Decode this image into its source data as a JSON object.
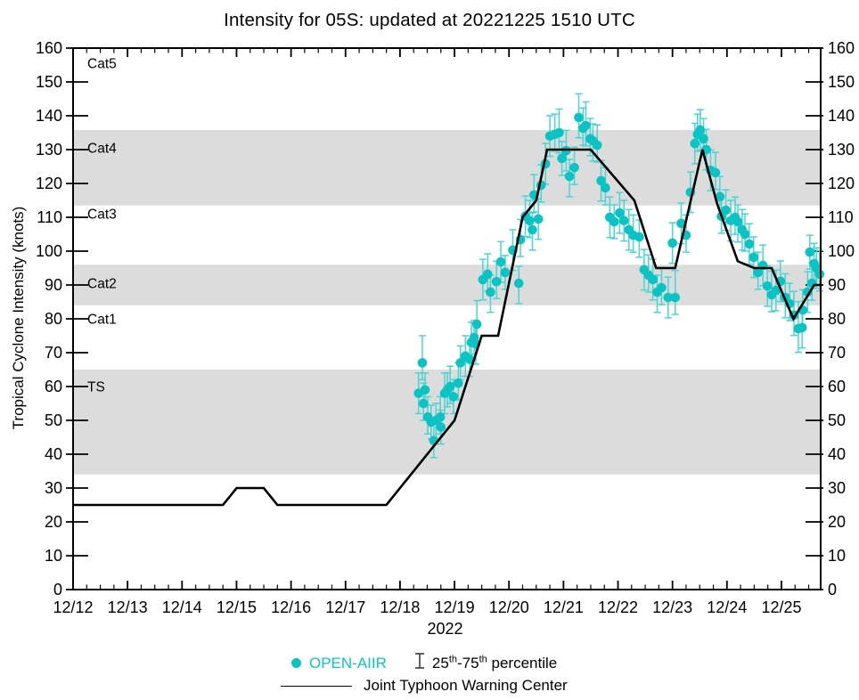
{
  "chart_data": {
    "type": "scatter",
    "title": "Intensity for 05S: updated at 20221225 1510 UTC",
    "ylabel": "Tropical Cyclone Intensity (knots)",
    "x_axis": {
      "year_label": "2022",
      "tick_labels": [
        "12/12",
        "12/13",
        "12/14",
        "12/15",
        "12/16",
        "12/17",
        "12/18",
        "12/19",
        "12/20",
        "12/21",
        "12/22",
        "12/23",
        "12/24",
        "12/25"
      ],
      "day_span": 13.72,
      "minor_step_days": 0.25
    },
    "y_axis": {
      "min": 0,
      "max": 160,
      "major_step": 10,
      "tick_labels": [
        "0",
        "10",
        "20",
        "30",
        "40",
        "50",
        "60",
        "70",
        "80",
        "90",
        "100",
        "110",
        "120",
        "130",
        "140",
        "150",
        "160"
      ]
    },
    "bands": [
      {
        "name": "TS",
        "from": 34,
        "to": 65
      },
      {
        "name": "Cat2",
        "from": 84,
        "to": 96
      },
      {
        "name": "Cat4",
        "from": 113.5,
        "to": 135.8
      }
    ],
    "category_labels": [
      {
        "label": "Cat5",
        "knots": 155.5
      },
      {
        "label": "Cat4",
        "knots": 130.5
      },
      {
        "label": "Cat3",
        "knots": 111
      },
      {
        "label": "Cat2",
        "knots": 90.5
      },
      {
        "label": "Cat1",
        "knots": 80
      },
      {
        "label": "TS",
        "knots": 60
      }
    ],
    "colors": {
      "band": "#dcdcdc",
      "open_aiir": "#0cc3c3",
      "error_bar": "#4ad4d4",
      "jtwc_line": "#000000"
    },
    "series": {
      "jtwc": {
        "name": "Joint Typhoon Warning Center",
        "points_day_knots": [
          [
            0,
            25
          ],
          [
            2.75,
            25
          ],
          [
            3.0,
            30
          ],
          [
            3.5,
            30
          ],
          [
            3.75,
            25
          ],
          [
            5.75,
            25
          ],
          [
            7.0,
            50
          ],
          [
            7.5,
            75
          ],
          [
            7.8,
            75
          ],
          [
            8.25,
            110
          ],
          [
            8.5,
            115
          ],
          [
            8.7,
            130
          ],
          [
            9.5,
            130
          ],
          [
            10.3,
            115
          ],
          [
            10.7,
            95
          ],
          [
            11.05,
            95
          ],
          [
            11.55,
            130
          ],
          [
            11.82,
            114
          ],
          [
            12.2,
            97
          ],
          [
            12.5,
            95
          ],
          [
            12.82,
            95
          ],
          [
            13.22,
            80
          ],
          [
            13.6,
            90
          ],
          [
            13.72,
            90
          ]
        ]
      },
      "open_aiir": {
        "name": "OPEN-AIIR",
        "points_day_knots_errlo_errhi": [
          [
            6.34,
            58,
            6,
            6
          ],
          [
            6.41,
            67,
            5,
            8
          ],
          [
            6.43,
            55,
            5,
            6
          ],
          [
            6.46,
            59,
            5,
            5
          ],
          [
            6.51,
            51,
            5,
            6
          ],
          [
            6.57,
            49.5,
            5,
            5
          ],
          [
            6.62,
            44,
            5,
            6
          ],
          [
            6.66,
            50,
            6,
            5
          ],
          [
            6.74,
            51,
            5,
            6
          ],
          [
            6.75,
            48,
            5,
            5
          ],
          [
            6.82,
            58,
            6,
            6
          ],
          [
            6.87,
            59,
            5,
            5
          ],
          [
            6.92,
            60,
            5,
            6
          ],
          [
            6.98,
            57,
            5,
            5
          ],
          [
            7.07,
            61,
            5,
            6
          ],
          [
            7.11,
            67,
            5,
            5
          ],
          [
            7.2,
            69,
            6,
            6
          ],
          [
            7.28,
            68,
            5,
            5
          ],
          [
            7.31,
            73,
            5,
            6
          ],
          [
            7.36,
            74.5,
            5,
            5
          ],
          [
            7.39,
            72.6,
            6,
            6
          ],
          [
            7.41,
            78.4,
            5,
            7
          ],
          [
            7.52,
            91.6,
            6,
            6
          ],
          [
            7.61,
            93.2,
            5,
            6
          ],
          [
            7.66,
            87.9,
            6,
            5
          ],
          [
            7.77,
            91,
            5,
            6
          ],
          [
            7.85,
            96.8,
            6,
            6
          ],
          [
            7.93,
            93.7,
            5,
            5
          ],
          [
            8.07,
            100.3,
            6,
            6
          ],
          [
            8.18,
            90.5,
            6,
            5
          ],
          [
            8.21,
            103.4,
            5,
            6
          ],
          [
            8.3,
            110.3,
            6,
            6
          ],
          [
            8.38,
            109,
            5,
            6
          ],
          [
            8.43,
            106.3,
            6,
            5
          ],
          [
            8.46,
            116.6,
            5,
            6
          ],
          [
            8.54,
            109.5,
            6,
            6
          ],
          [
            8.59,
            119.5,
            5,
            6
          ],
          [
            8.67,
            125.8,
            6,
            6
          ],
          [
            8.75,
            134,
            6,
            6
          ],
          [
            8.84,
            134.5,
            5,
            6
          ],
          [
            8.92,
            135,
            6,
            7
          ],
          [
            8.97,
            127.4,
            5,
            5
          ],
          [
            9.05,
            129.7,
            6,
            6
          ],
          [
            9.11,
            122.1,
            6,
            5
          ],
          [
            9.2,
            124.7,
            5,
            6
          ],
          [
            9.28,
            139.5,
            6,
            7
          ],
          [
            9.36,
            136.3,
            5,
            6
          ],
          [
            9.41,
            137.1,
            6,
            7
          ],
          [
            9.49,
            133.2,
            5,
            6
          ],
          [
            9.54,
            132.6,
            6,
            5
          ],
          [
            9.62,
            131.3,
            5,
            6
          ],
          [
            9.69,
            120.8,
            6,
            6
          ],
          [
            9.77,
            118.7,
            5,
            6
          ],
          [
            9.85,
            110,
            6,
            6
          ],
          [
            9.93,
            108.7,
            5,
            5
          ],
          [
            10.03,
            111.3,
            6,
            6
          ],
          [
            10.11,
            109,
            6,
            6
          ],
          [
            10.2,
            106.3,
            6,
            6
          ],
          [
            10.28,
            104.7,
            5,
            6
          ],
          [
            10.39,
            104.2,
            6,
            5
          ],
          [
            10.48,
            94.5,
            6,
            6
          ],
          [
            10.56,
            92.9,
            5,
            6
          ],
          [
            10.64,
            91.6,
            6,
            6
          ],
          [
            10.72,
            87.9,
            6,
            5
          ],
          [
            10.8,
            89.2,
            5,
            6
          ],
          [
            10.92,
            86.3,
            6,
            6
          ],
          [
            11.0,
            102.4,
            6,
            6
          ],
          [
            11.05,
            86.3,
            5,
            8
          ],
          [
            11.16,
            108.2,
            6,
            6
          ],
          [
            11.25,
            104.7,
            5,
            6
          ],
          [
            11.33,
            117.4,
            6,
            6
          ],
          [
            11.41,
            131.8,
            6,
            6
          ],
          [
            11.46,
            134.5,
            5,
            6
          ],
          [
            11.51,
            135.8,
            6,
            6
          ],
          [
            11.57,
            133.2,
            5,
            6
          ],
          [
            11.62,
            130,
            6,
            6
          ],
          [
            11.7,
            123.9,
            6,
            6
          ],
          [
            11.79,
            123.2,
            5,
            6
          ],
          [
            11.87,
            116.1,
            6,
            6
          ],
          [
            11.9,
            110.3,
            5,
            6
          ],
          [
            11.98,
            112.1,
            6,
            6
          ],
          [
            12.07,
            109,
            6,
            6
          ],
          [
            12.15,
            110,
            5,
            6
          ],
          [
            12.2,
            108.7,
            6,
            5
          ],
          [
            12.28,
            106.3,
            6,
            6
          ],
          [
            12.33,
            105,
            5,
            6
          ],
          [
            12.41,
            102.1,
            6,
            6
          ],
          [
            12.49,
            98.2,
            6,
            6
          ],
          [
            12.57,
            93.7,
            5,
            6
          ],
          [
            12.66,
            95.8,
            6,
            6
          ],
          [
            12.74,
            89.7,
            6,
            6
          ],
          [
            12.82,
            87.1,
            5,
            7
          ],
          [
            12.9,
            88.4,
            6,
            6
          ],
          [
            12.98,
            91.1,
            6,
            6
          ],
          [
            13.07,
            86.3,
            6,
            7
          ],
          [
            13.15,
            84.5,
            5,
            6
          ],
          [
            13.23,
            81.1,
            6,
            7
          ],
          [
            13.31,
            77.1,
            7,
            8
          ],
          [
            13.38,
            77.4,
            6,
            6
          ],
          [
            13.39,
            82.6,
            5,
            6
          ],
          [
            13.48,
            87.9,
            6,
            6
          ],
          [
            13.52,
            99.7,
            5,
            5
          ],
          [
            13.56,
            90.5,
            5,
            6
          ],
          [
            13.6,
            96.3,
            5,
            6
          ],
          [
            13.64,
            95,
            6,
            6
          ],
          [
            13.7,
            93.2,
            5,
            7
          ]
        ]
      }
    }
  },
  "legend": {
    "open_aiir": "OPEN-AIIR",
    "pct_25": "25",
    "pct_th1": "th",
    "pct_dash75": "-75",
    "pct_th2": "th",
    "pct_tail": " percentile",
    "jtwc": "Joint Typhoon Warning Center"
  }
}
